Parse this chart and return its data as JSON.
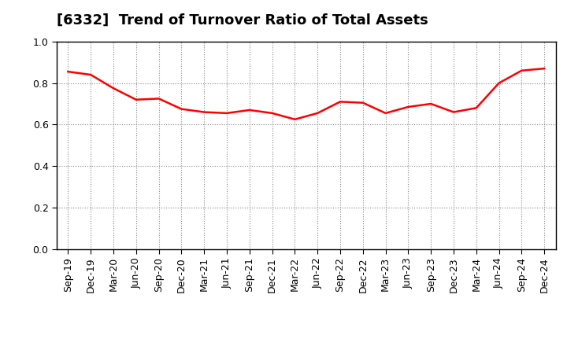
{
  "title": "[6332]  Trend of Turnover Ratio of Total Assets",
  "labels": [
    "Sep-19",
    "Dec-19",
    "Mar-20",
    "Jun-20",
    "Sep-20",
    "Dec-20",
    "Mar-21",
    "Jun-21",
    "Sep-21",
    "Dec-21",
    "Mar-22",
    "Jun-22",
    "Sep-22",
    "Dec-22",
    "Mar-23",
    "Jun-23",
    "Sep-23",
    "Dec-23",
    "Mar-24",
    "Jun-24",
    "Sep-24",
    "Dec-24"
  ],
  "values": [
    0.855,
    0.84,
    0.775,
    0.72,
    0.725,
    0.675,
    0.66,
    0.655,
    0.67,
    0.655,
    0.625,
    0.655,
    0.71,
    0.705,
    0.655,
    0.685,
    0.7,
    0.66,
    0.68,
    0.8,
    0.86,
    0.87
  ],
  "line_color": "#FF0000",
  "line_width": 1.8,
  "ylim": [
    0.0,
    1.0
  ],
  "yticks": [
    0.0,
    0.2,
    0.4,
    0.6,
    0.8,
    1.0
  ],
  "grid_color": "#888888",
  "background_color": "#ffffff",
  "title_fontsize": 13,
  "tick_fontsize": 9,
  "title_color": "#000000"
}
